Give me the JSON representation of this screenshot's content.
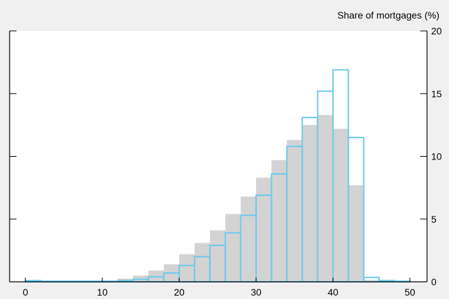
{
  "chart_data": {
    "type": "bar",
    "title": "",
    "xlabel": "",
    "ylabel": "Share of mortgages (%)",
    "xlim": [
      0,
      50
    ],
    "ylim": [
      0,
      20
    ],
    "x_ticks": [
      0,
      10,
      20,
      30,
      40,
      50
    ],
    "y_ticks": [
      0,
      5,
      10,
      15,
      20
    ],
    "y_axis_position": "right",
    "grid": false,
    "legend": "none",
    "bin_width": 2,
    "bin_left_edges": [
      0,
      2,
      4,
      6,
      8,
      10,
      12,
      14,
      16,
      18,
      20,
      22,
      24,
      26,
      28,
      30,
      32,
      34,
      36,
      38,
      40,
      42,
      44,
      46,
      48
    ],
    "series": [
      {
        "style": "filled",
        "color": "#d3d3d3",
        "values": [
          0.05,
          0.05,
          0.05,
          0.05,
          0.05,
          0.1,
          0.25,
          0.5,
          0.9,
          1.4,
          2.2,
          3.1,
          4.1,
          5.4,
          6.8,
          8.3,
          9.7,
          11.3,
          12.5,
          13.3,
          12.2,
          7.7,
          0.15,
          0.05,
          0.05
        ]
      },
      {
        "style": "outline",
        "color": "#6ec9ee",
        "values": [
          0.1,
          0.05,
          0.05,
          0.05,
          0.05,
          0.05,
          0.1,
          0.2,
          0.4,
          0.7,
          1.3,
          2.0,
          2.9,
          3.9,
          5.3,
          6.9,
          8.6,
          10.8,
          13.1,
          15.2,
          16.9,
          11.5,
          0.35,
          0.1,
          0.05
        ]
      }
    ]
  }
}
